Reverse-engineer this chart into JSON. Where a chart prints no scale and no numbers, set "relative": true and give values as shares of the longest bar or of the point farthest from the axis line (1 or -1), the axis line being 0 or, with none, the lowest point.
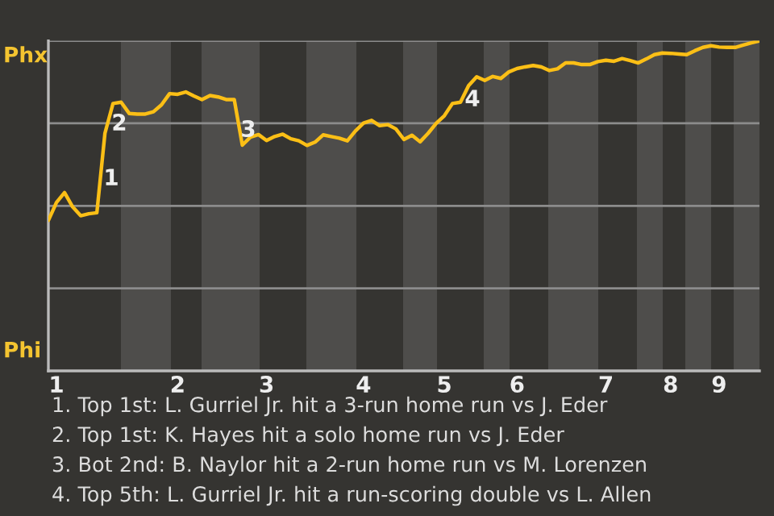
{
  "chart_data": {
    "type": "line",
    "relative": true,
    "categories": [
      null,
      "1",
      null,
      null,
      null,
      null,
      null,
      null,
      null,
      null,
      null,
      null,
      null,
      null,
      null,
      null,
      "2",
      null,
      null,
      null,
      null,
      null,
      null,
      null,
      null,
      null,
      null,
      "3",
      null,
      null,
      null,
      null,
      null,
      null,
      null,
      null,
      null,
      null,
      null,
      "4",
      null,
      null,
      null,
      null,
      null,
      null,
      null,
      null,
      null,
      "5",
      null,
      null,
      null,
      null,
      null,
      null,
      null,
      null,
      "6",
      null,
      null,
      null,
      null,
      null,
      null,
      null,
      null,
      null,
      null,
      "7",
      null,
      null,
      null,
      null,
      null,
      null,
      null,
      "8",
      null,
      null,
      null,
      null,
      null,
      "9",
      null,
      null,
      null,
      null,
      null
    ],
    "series": [
      {
        "color": "#fbbf16",
        "values": [
          0.456,
          0.51,
          0.54,
          0.497,
          0.47,
          0.476,
          0.479,
          0.72,
          0.81,
          0.814,
          0.78,
          0.778,
          0.778,
          0.785,
          0.806,
          0.84,
          0.838,
          0.845,
          0.833,
          0.822,
          0.834,
          0.83,
          0.822,
          0.822,
          0.684,
          0.708,
          0.716,
          0.698,
          0.71,
          0.717,
          0.703,
          0.697,
          0.683,
          0.693,
          0.715,
          0.71,
          0.705,
          0.697,
          0.727,
          0.751,
          0.759,
          0.743,
          0.746,
          0.733,
          0.701,
          0.714,
          0.694,
          0.72,
          0.75,
          0.773,
          0.81,
          0.814,
          0.864,
          0.891,
          0.88,
          0.892,
          0.886,
          0.906,
          0.916,
          0.921,
          0.925,
          0.921,
          0.91,
          0.915,
          0.933,
          0.933,
          0.928,
          0.928,
          0.937,
          0.941,
          0.938,
          0.946,
          0.94,
          0.933,
          0.945,
          0.958,
          0.963,
          0.962,
          0.96,
          0.958,
          0.97,
          0.98,
          0.985,
          0.981,
          0.98,
          0.98,
          0.987,
          0.994,
          1.0
        ]
      }
    ],
    "ref_lines": [
      {
        "axis": "y",
        "value": 0.25,
        "color": "#8c8c8c"
      },
      {
        "axis": "y",
        "value": 0.5,
        "color": "#8c8c8c"
      },
      {
        "axis": "y",
        "value": 0.75,
        "color": "#8c8c8c"
      },
      {
        "axis": "y",
        "value": 1.0,
        "color": "#8c8c8c"
      }
    ],
    "annotations": [
      "Phx",
      "Phi",
      "1",
      "2",
      "3",
      "4",
      "1. Top 1st: L. Gurriel Jr. hit a 3-run home run vs J. Eder",
      "2. Top 1st: K. Hayes hit a solo home run vs J. Eder",
      "3. Bot 2nd: B. Naylor hit a 2-run home run vs M. Lorenzen",
      "4. Top 5th: L. Gurriel Jr. hit a run-scoring double vs L. Allen"
    ]
  }
}
